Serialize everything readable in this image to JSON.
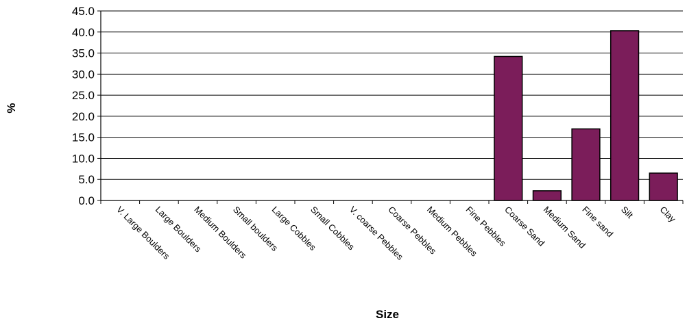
{
  "chart_data": {
    "type": "bar",
    "title": "",
    "xlabel": "Size",
    "ylabel": "%",
    "ylim": [
      0,
      45
    ],
    "y_ticks": [
      "0.0",
      "5.0",
      "10.0",
      "15.0",
      "20.0",
      "25.0",
      "30.0",
      "35.0",
      "40.0",
      "45.0"
    ],
    "grid": true,
    "legend": "none",
    "bar_color": "#7b1d5a",
    "categories": [
      "V. Large Boulders",
      "Large Boulders",
      "Medium Boulders",
      "Small boulders",
      "Large Cobbles",
      "Small Cobbles",
      "V. coarse Pebbles",
      "Coarse Pebbles",
      "Medium Pebbles",
      "Fine Pebbles",
      "Coarse Sand",
      "Medium Sand",
      "Fine sand",
      "Silt",
      "Clay"
    ],
    "values": [
      0,
      0,
      0,
      0,
      0,
      0,
      0,
      0,
      0,
      0,
      34.2,
      2.3,
      17.0,
      40.3,
      6.5
    ]
  }
}
